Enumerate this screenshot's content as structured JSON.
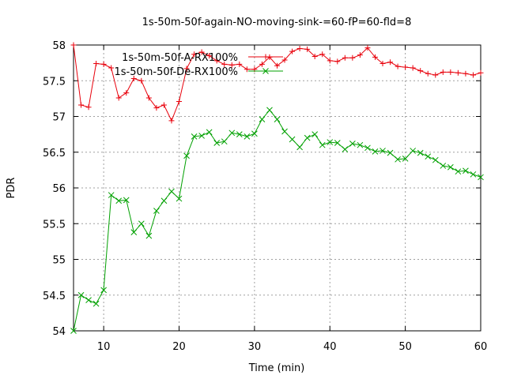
{
  "chart_data": {
    "type": "line",
    "title": "1s-50m-50f-again-NO-moving-sink-=60-fP=60-fld=8",
    "xlabel": "Time (min)",
    "ylabel": "PDR",
    "xlim": [
      6,
      60
    ],
    "ylim": [
      54,
      58
    ],
    "xticks": [
      10,
      20,
      30,
      40,
      50,
      60
    ],
    "yticks": [
      54,
      54.5,
      55,
      55.5,
      56,
      56.5,
      57,
      57.5,
      58
    ],
    "ytick_labels": [
      "54",
      "54.5",
      "55",
      "55.5",
      "56",
      "56.5",
      "57",
      "57.5",
      "58"
    ],
    "grid": true,
    "legend_position": "top-left",
    "x": [
      6,
      7,
      8,
      9,
      10,
      11,
      12,
      13,
      14,
      15,
      16,
      17,
      18,
      19,
      20,
      21,
      22,
      23,
      24,
      25,
      26,
      27,
      28,
      29,
      30,
      31,
      32,
      33,
      34,
      35,
      36,
      37,
      38,
      39,
      40,
      41,
      42,
      43,
      44,
      45,
      46,
      47,
      48,
      49,
      50,
      51,
      52,
      53,
      54,
      55,
      56,
      57,
      58,
      59,
      60
    ],
    "series": [
      {
        "name": "1s-50m-50f-A-RX100%",
        "color": "#e8000b",
        "marker": "plus",
        "values": [
          58.0,
          57.16,
          57.13,
          57.74,
          57.73,
          57.68,
          57.26,
          57.33,
          57.53,
          57.5,
          57.26,
          57.12,
          57.16,
          56.94,
          57.21,
          57.67,
          57.87,
          57.9,
          57.85,
          57.78,
          57.73,
          57.72,
          57.73,
          57.66,
          57.66,
          57.73,
          57.83,
          57.71,
          57.79,
          57.91,
          57.95,
          57.94,
          57.84,
          57.87,
          57.78,
          57.77,
          57.82,
          57.82,
          57.86,
          57.96,
          57.83,
          57.74,
          57.76,
          57.7,
          57.69,
          57.68,
          57.64,
          57.6,
          57.58,
          57.62,
          57.62,
          57.61,
          57.6,
          57.58,
          57.61
        ]
      },
      {
        "name": "1s-50m-50f-De-RX100%",
        "color": "#00a000",
        "marker": "cross",
        "values": [
          54.0,
          54.5,
          54.43,
          54.38,
          54.57,
          55.9,
          55.82,
          55.83,
          55.38,
          55.5,
          55.33,
          55.68,
          55.82,
          55.95,
          55.85,
          56.45,
          56.72,
          56.73,
          56.78,
          56.63,
          56.65,
          56.77,
          56.75,
          56.72,
          56.76,
          56.96,
          57.09,
          56.96,
          56.79,
          56.68,
          56.57,
          56.7,
          56.75,
          56.6,
          56.64,
          56.63,
          56.54,
          56.62,
          56.6,
          56.56,
          56.51,
          56.52,
          56.49,
          56.4,
          56.41,
          56.52,
          56.49,
          56.44,
          56.39,
          56.31,
          56.29,
          56.23,
          56.24,
          56.19,
          56.15
        ]
      }
    ]
  }
}
